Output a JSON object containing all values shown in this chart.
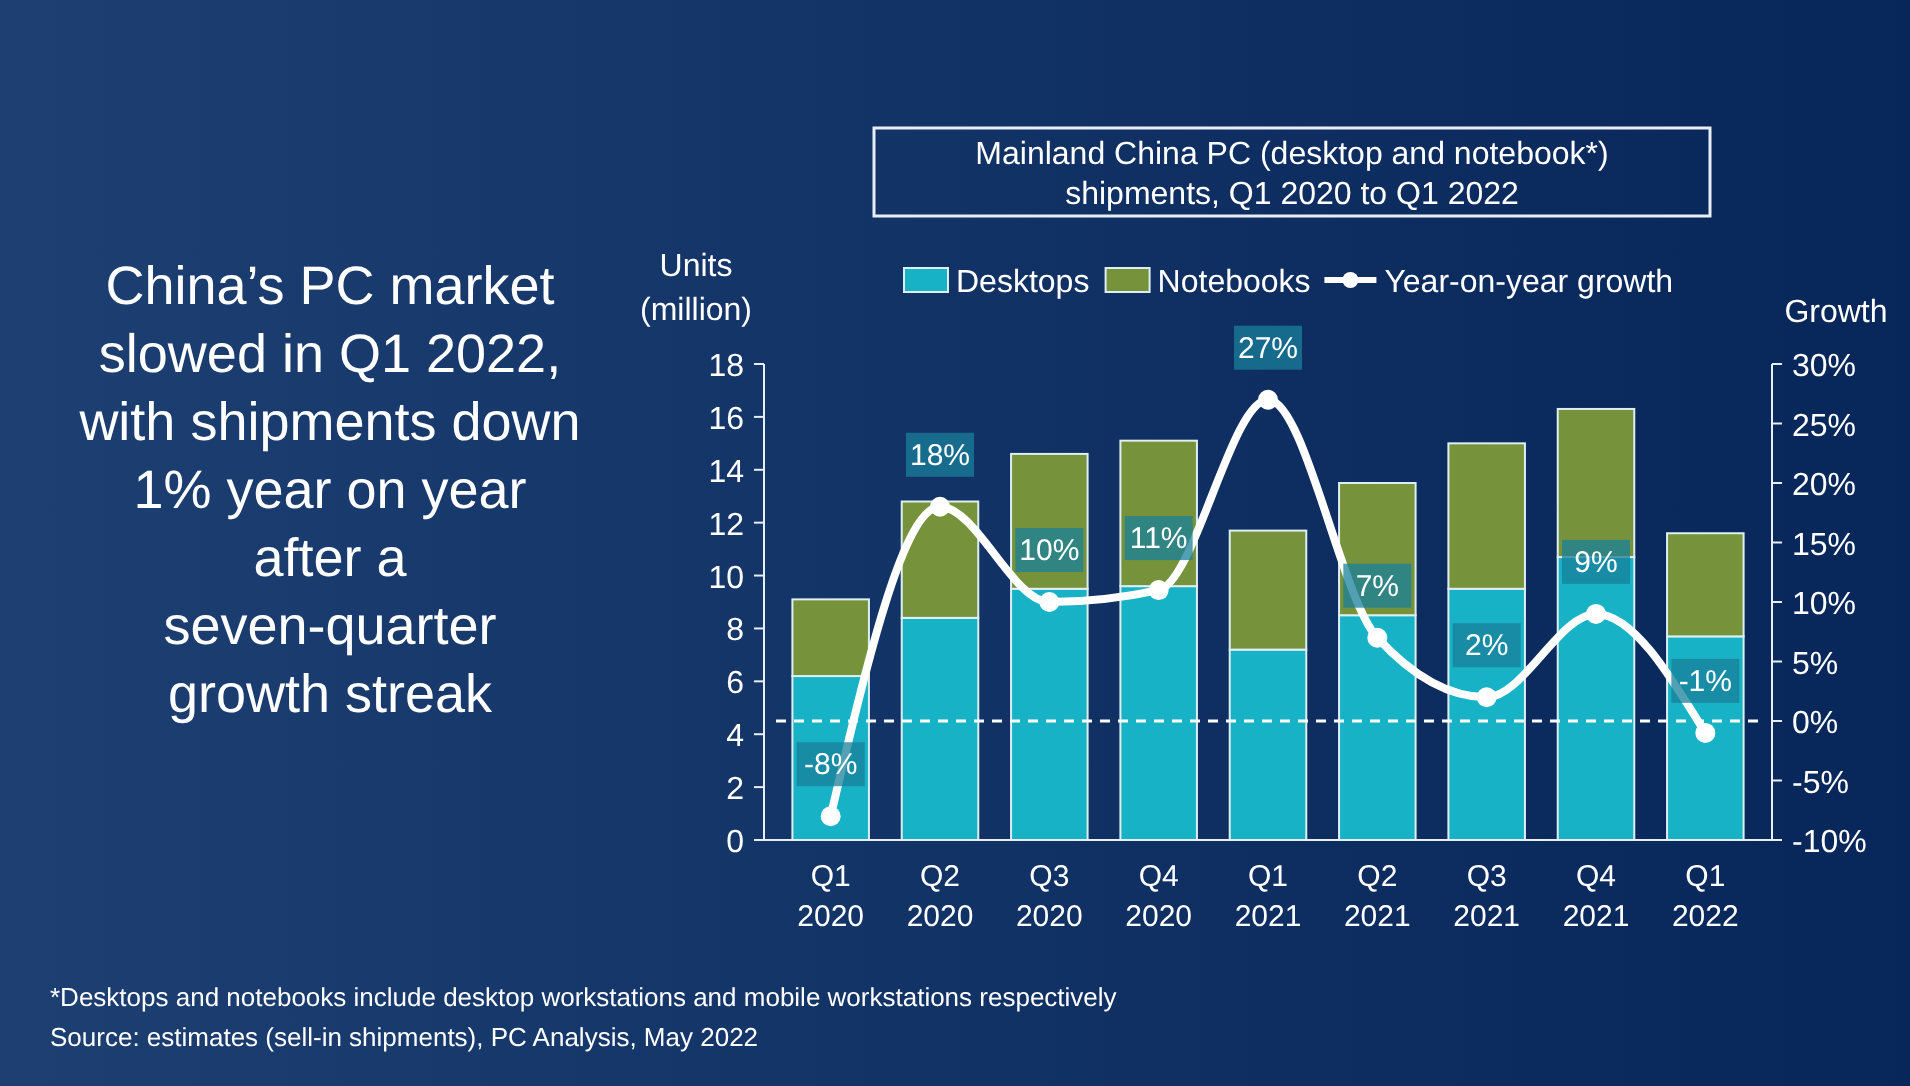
{
  "chart_data": {
    "type": "bar",
    "title": "Mainland China PC (desktop and notebook*) shipments, Q1 2020 to Q1 2022",
    "categories": [
      "Q1 2020",
      "Q2 2020",
      "Q3 2020",
      "Q4 2020",
      "Q1 2021",
      "Q2 2021",
      "Q3 2021",
      "Q4 2021",
      "Q1 2022"
    ],
    "stacked": true,
    "series": [
      {
        "name": "Desktops",
        "color": "#17b2c6",
        "values": [
          6.2,
          8.4,
          9.5,
          9.6,
          7.2,
          8.5,
          9.5,
          10.7,
          7.7
        ]
      },
      {
        "name": "Notebooks",
        "color": "#76933c",
        "values": [
          2.9,
          4.4,
          5.1,
          5.5,
          4.5,
          5.0,
          5.5,
          5.6,
          3.9
        ]
      },
      {
        "name": "Year-on-year growth",
        "type": "line",
        "axis": "y2",
        "color": "#ffffff",
        "marker": "circle",
        "values": [
          -8,
          18,
          10,
          11,
          27,
          7,
          2,
          9,
          -1
        ],
        "value_labels": [
          "-8%",
          "18%",
          "10%",
          "11%",
          "27%",
          "7%",
          "2%",
          "9%",
          "-1%"
        ]
      }
    ],
    "ylabel": "Units (million)",
    "y2label": "Growth",
    "ylim": [
      0,
      18
    ],
    "yticks": [
      0,
      2,
      4,
      6,
      8,
      10,
      12,
      14,
      16,
      18
    ],
    "y2lim": [
      -10,
      30
    ],
    "y2ticks": [
      {
        "value": -10,
        "label": "-10%"
      },
      {
        "value": -5,
        "label": "-5%"
      },
      {
        "value": 0,
        "label": "0%"
      },
      {
        "value": 5,
        "label": "5%"
      },
      {
        "value": 10,
        "label": "10%"
      },
      {
        "value": 15,
        "label": "15%"
      },
      {
        "value": 20,
        "label": "20%"
      },
      {
        "value": 25,
        "label": "25%"
      },
      {
        "value": 30,
        "label": "30%"
      }
    ],
    "ref_lines": [
      {
        "axis": "y2",
        "value": 0,
        "color": "#ffffff",
        "line_style": "dashed"
      }
    ],
    "legend": "top",
    "grid": false,
    "annotations": [
      "China’s PC market slowed in Q1 2022, with shipments down 1% year on year after a seven-quarter growth streak",
      "*Desktops and notebooks include desktop workstations and mobile workstations respectively",
      "Source: estimates (sell-in shipments), PC Analysis, May 2022"
    ]
  }
}
